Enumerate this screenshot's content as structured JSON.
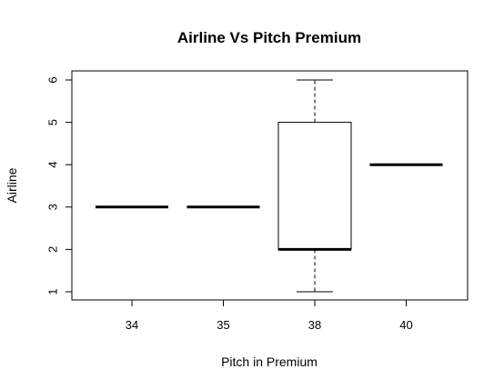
{
  "chart_data": {
    "type": "boxplot",
    "title": "Airline Vs Pitch Premium",
    "xlabel": "Pitch in Premium",
    "ylabel": "Airline",
    "categories": [
      "34",
      "35",
      "38",
      "40"
    ],
    "ylim": [
      1,
      6
    ],
    "yticks": [
      "1",
      "2",
      "3",
      "4",
      "5",
      "6"
    ],
    "boxes": [
      {
        "category": "34",
        "min": 3,
        "q1": 3,
        "median": 3,
        "q3": 3,
        "max": 3
      },
      {
        "category": "35",
        "min": 3,
        "q1": 3,
        "median": 3,
        "q3": 3,
        "max": 3
      },
      {
        "category": "38",
        "min": 1,
        "q1": 2,
        "median": 2,
        "q3": 5,
        "max": 6
      },
      {
        "category": "40",
        "min": 4,
        "q1": 4,
        "median": 4,
        "q3": 4,
        "max": 4
      }
    ],
    "grid": false,
    "legend": "none",
    "colors": {
      "box_fill": "#ffffff",
      "stroke": "#000000"
    }
  }
}
